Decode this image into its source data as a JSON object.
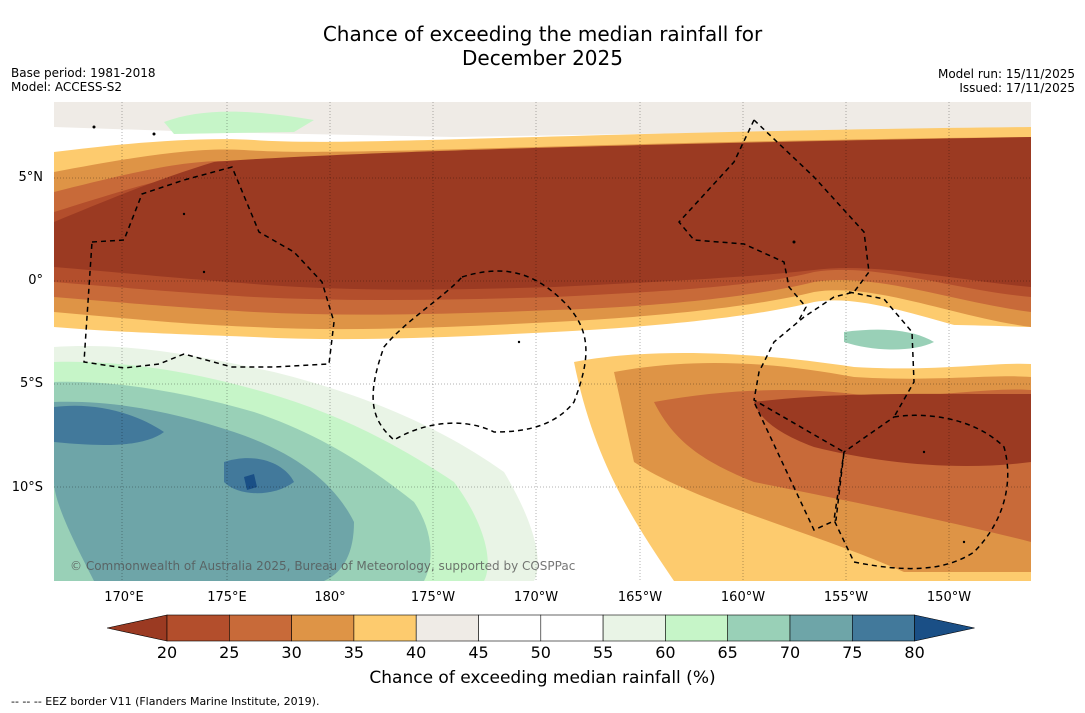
{
  "title_line1": "Chance of exceeding the median rainfall for",
  "title_line2": "December 2025",
  "meta_left": {
    "base_period": "Base period: 1981-2018",
    "model": "Model: ACCESS-S2"
  },
  "meta_right": {
    "model_run": "Model run: 15/11/2025",
    "issued": "Issued: 17/11/2025"
  },
  "map": {
    "lat_labels": [
      "5°N",
      "0°",
      "5°S",
      "10°S"
    ],
    "lon_labels": [
      "170°E",
      "175°E",
      "180°",
      "175°W",
      "170°W",
      "165°W",
      "160°W",
      "155°W",
      "150°W"
    ],
    "copyright": "© Commonwealth of Australia 2025, Bureau of Meteorology, supported by COSPPac"
  },
  "colorbar": {
    "ticks": [
      "20",
      "25",
      "30",
      "35",
      "40",
      "45",
      "50",
      "55",
      "60",
      "65",
      "70",
      "75",
      "80"
    ],
    "colors": [
      "#9b3a22",
      "#b34e2c",
      "#c86a39",
      "#de9446",
      "#fdcb6e",
      "#efebe6",
      "#ffffff",
      "#ffffff",
      "#e9f4e6",
      "#c6f5c8",
      "#99d0b7",
      "#6ea5a8",
      "#42799b",
      "#1a4f86"
    ],
    "label": "Chance of exceeding median rainfall (%)"
  },
  "footnote": "--  --  -- EEZ border V11 (Flanders Marine Institute, 2019)."
}
